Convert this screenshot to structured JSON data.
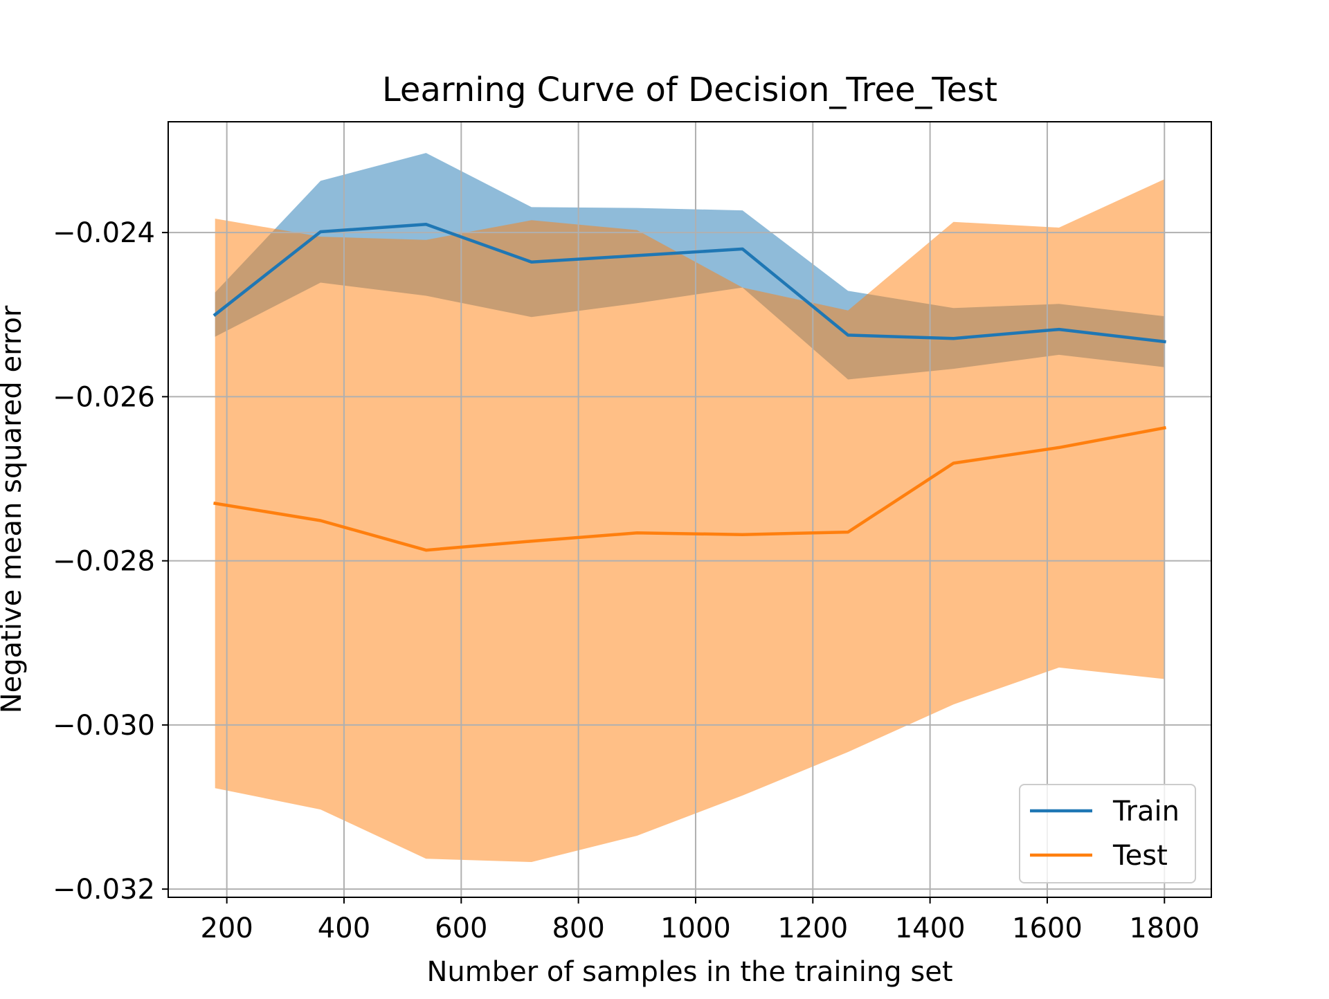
{
  "chart_data": {
    "type": "line",
    "title": "Learning Curve of Decision_Tree_Test",
    "xlabel": "Number of samples in the training set",
    "ylabel": "Negative mean squared error",
    "xlim": [
      100,
      1880
    ],
    "ylim": [
      -0.0321,
      -0.02265
    ],
    "xticks": [
      200,
      400,
      600,
      800,
      1000,
      1200,
      1400,
      1600,
      1800
    ],
    "xtick_labels": [
      "200",
      "400",
      "600",
      "800",
      "1000",
      "1200",
      "1400",
      "1600",
      "1800"
    ],
    "yticks": [
      -0.024,
      -0.026,
      -0.028,
      -0.03,
      -0.032
    ],
    "ytick_labels": [
      "−0.024",
      "−0.026",
      "−0.028",
      "−0.030",
      "−0.032"
    ],
    "grid": true,
    "legend_position": "lower right",
    "x": [
      180,
      360,
      540,
      720,
      900,
      1080,
      1260,
      1440,
      1620,
      1800
    ],
    "series": [
      {
        "name": "Train",
        "color": "#1f77b4",
        "values": [
          -0.025,
          -0.02399,
          -0.0239,
          -0.02436,
          -0.02428,
          -0.0242,
          -0.02525,
          -0.02529,
          -0.02518,
          -0.02533
        ],
        "upper": [
          -0.02473,
          -0.02337,
          -0.02303,
          -0.02369,
          -0.0237,
          -0.02373,
          -0.02471,
          -0.02492,
          -0.02487,
          -0.02502
        ],
        "lower": [
          -0.02527,
          -0.02461,
          -0.02477,
          -0.02503,
          -0.02486,
          -0.02467,
          -0.02579,
          -0.02566,
          -0.02549,
          -0.02564
        ]
      },
      {
        "name": "Test",
        "color": "#ff7f0e",
        "values": [
          -0.0273,
          -0.02751,
          -0.02787,
          -0.02776,
          -0.02766,
          -0.02768,
          -0.02765,
          -0.02681,
          -0.02662,
          -0.02638
        ],
        "upper": [
          -0.02383,
          -0.02405,
          -0.02409,
          -0.02385,
          -0.02397,
          -0.02467,
          -0.02495,
          -0.02387,
          -0.02394,
          -0.02335
        ],
        "lower": [
          -0.03077,
          -0.03103,
          -0.03163,
          -0.03167,
          -0.03135,
          -0.03086,
          -0.03033,
          -0.02975,
          -0.0293,
          -0.02944
        ]
      }
    ]
  }
}
